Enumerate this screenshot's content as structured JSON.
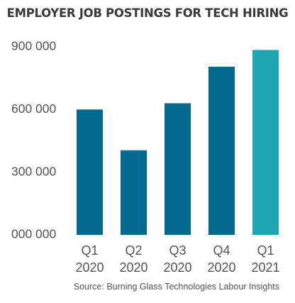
{
  "chart_data": {
    "type": "bar",
    "title": "EMPLOYER JOB POSTINGS FOR TECH HIRING",
    "categories": [
      [
        "Q1",
        "2020"
      ],
      [
        "Q2",
        "2020"
      ],
      [
        "Q3",
        "2020"
      ],
      [
        "Q4",
        "2020"
      ],
      [
        "Q1",
        "2021"
      ]
    ],
    "values": [
      600000,
      405000,
      630000,
      805000,
      885000
    ],
    "bar_colors": [
      "#046a8f",
      "#046a8f",
      "#046a8f",
      "#046a8f",
      "#1fa6b4"
    ],
    "y_ticks": [
      {
        "value": 0,
        "label": "000 000"
      },
      {
        "value": 300000,
        "label": "300 000"
      },
      {
        "value": 600000,
        "label": "600 000"
      },
      {
        "value": 900000,
        "label": "900 000"
      }
    ],
    "ylim": [
      0,
      900000
    ],
    "grid": false,
    "source": "Source: Burning Glass Technologies Labour Insights"
  }
}
